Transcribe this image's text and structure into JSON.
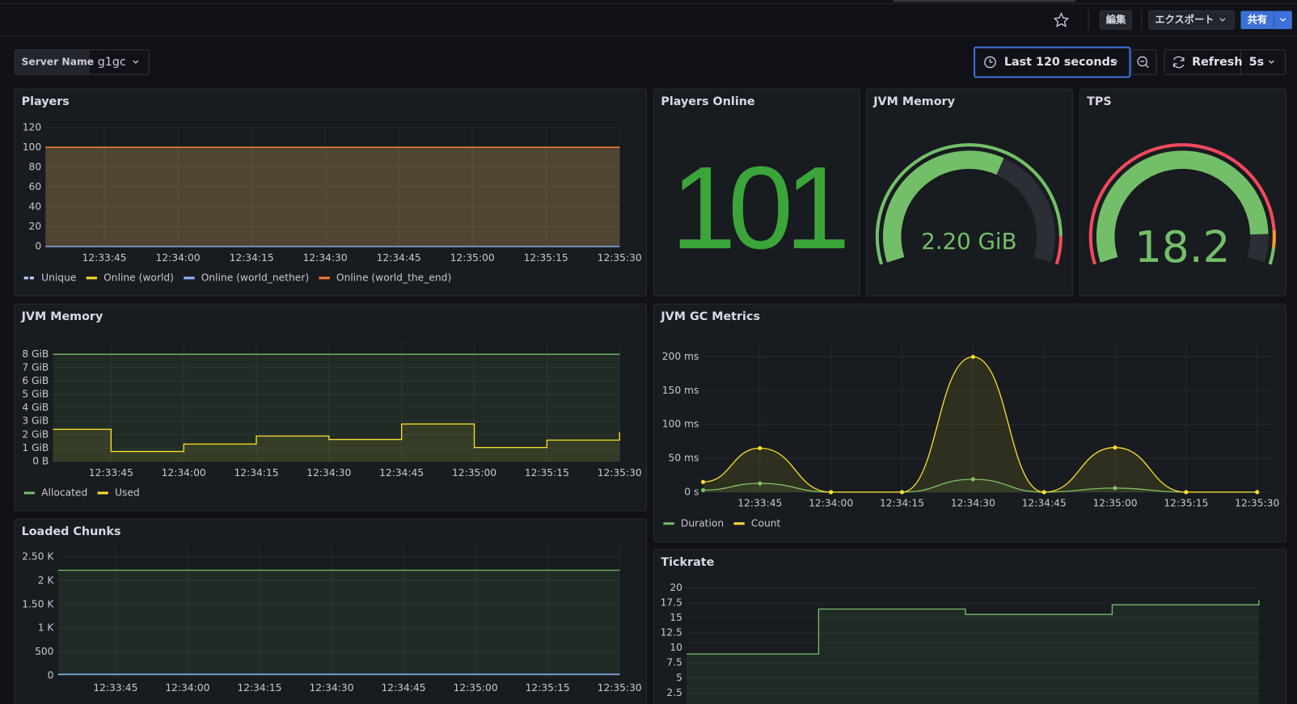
{
  "header": {
    "buttons": [
      "編集",
      "エクスポート",
      "共有"
    ]
  },
  "controls": {
    "variable_label": "Server Name",
    "variable_value": "g1gc",
    "time_range": "Last 120 seconds",
    "refresh": "Refresh",
    "refresh_interval": "5s"
  },
  "chart_data": [
    {
      "type": "line",
      "title": "Players",
      "x": [
        "12:33:33",
        "12:35:30"
      ],
      "xlim": [
        "12:33:33",
        "12:35:30"
      ],
      "xticks": [
        "12:33:45",
        "12:34:00",
        "12:34:15",
        "12:34:30",
        "12:34:45",
        "12:35:00",
        "12:35:15",
        "12:35:30"
      ],
      "ylim": [
        0,
        120
      ],
      "yticks": [
        0,
        20,
        40,
        60,
        80,
        100,
        120
      ],
      "grid": true,
      "series": [
        {
          "name": "Unique",
          "color": "#c0d8ff",
          "dashed": true,
          "values": [
            100,
            100
          ]
        },
        {
          "name": "Online (world)",
          "color": "#fade2a",
          "values": [
            100,
            100
          ]
        },
        {
          "name": "Online (world_nether)",
          "color": "#8ab8ff",
          "values": [
            0,
            0
          ]
        },
        {
          "name": "Online (world_the_end)",
          "color": "#ff7833",
          "values": [
            100,
            100
          ]
        }
      ]
    },
    {
      "type": "stat",
      "title": "Players Online",
      "value": 101,
      "color": "#3ba53a"
    },
    {
      "type": "gauge",
      "title": "JVM Memory",
      "value": 2.2,
      "value_label": "2.20 GiB",
      "min": 0,
      "max": 3.6,
      "color": "#73bf69",
      "thresholds": [
        {
          "value": 0,
          "color": "#73bf69"
        },
        {
          "value": 3.3,
          "color": "#f2495c"
        }
      ]
    },
    {
      "type": "gauge",
      "title": "TPS",
      "value": 18.2,
      "min": 0,
      "max": 20,
      "color": "#73bf69",
      "thresholds": [
        {
          "value": 0,
          "color": "#f2495c"
        },
        {
          "value": 18,
          "color": "#ff9830"
        },
        {
          "value": 19,
          "color": "#73bf69"
        }
      ]
    },
    {
      "type": "line",
      "title": "JVM Memory",
      "step": true,
      "x": [
        "12:33:33",
        "12:33:45",
        "12:34:00",
        "12:34:15",
        "12:34:30",
        "12:34:45",
        "12:35:00",
        "12:35:15",
        "12:35:30"
      ],
      "xlim": [
        "12:33:33",
        "12:35:30"
      ],
      "xticks": [
        "12:33:45",
        "12:34:00",
        "12:34:15",
        "12:34:30",
        "12:34:45",
        "12:35:00",
        "12:35:15",
        "12:35:30"
      ],
      "ylim": [
        0,
        9
      ],
      "yticks": [
        {
          "value": 0,
          "label": "0 B"
        },
        {
          "value": 1,
          "label": "1 GiB"
        },
        {
          "value": 2,
          "label": "2 GiB"
        },
        {
          "value": 3,
          "label": "3 GiB"
        },
        {
          "value": 4,
          "label": "4 GiB"
        },
        {
          "value": 5,
          "label": "5 GiB"
        },
        {
          "value": 6,
          "label": "6 GiB"
        },
        {
          "value": 7,
          "label": "7 GiB"
        },
        {
          "value": 8,
          "label": "8 GiB"
        }
      ],
      "grid": true,
      "series": [
        {
          "name": "Allocated",
          "color": "#73bf69",
          "values": [
            8,
            8,
            8,
            8,
            8,
            8,
            8,
            8,
            8
          ]
        },
        {
          "name": "Used",
          "color": "#fade2a",
          "values": [
            2.4,
            0.75,
            1.3,
            1.9,
            1.65,
            2.8,
            1.05,
            1.6,
            2.2
          ]
        }
      ]
    },
    {
      "type": "line",
      "title": "JVM GC Metrics",
      "smooth": true,
      "points": true,
      "x": [
        "12:33:33",
        "12:33:45",
        "12:34:00",
        "12:34:15",
        "12:34:30",
        "12:34:45",
        "12:35:00",
        "12:35:15",
        "12:35:30"
      ],
      "xlim": [
        "12:33:33",
        "12:35:33"
      ],
      "xticks": [
        "12:33:45",
        "12:34:00",
        "12:34:15",
        "12:34:30",
        "12:34:45",
        "12:35:00",
        "12:35:15",
        "12:35:30"
      ],
      "ylim": [
        0,
        220
      ],
      "yticks": [
        {
          "value": 0,
          "label": "0 s"
        },
        {
          "value": 50,
          "label": "50 ms"
        },
        {
          "value": 100,
          "label": "100 ms"
        },
        {
          "value": 150,
          "label": "150 ms"
        },
        {
          "value": 200,
          "label": "200 ms"
        }
      ],
      "grid": true,
      "series": [
        {
          "name": "Duration",
          "color": "#73bf69",
          "values": [
            3,
            13,
            0,
            0,
            19,
            0,
            6,
            0,
            0
          ]
        },
        {
          "name": "Count",
          "color": "#fade2a",
          "values": [
            15,
            65,
            0,
            0,
            200,
            0,
            66,
            0,
            0
          ]
        }
      ]
    },
    {
      "type": "line",
      "title": "Loaded Chunks",
      "x": [
        "12:33:33",
        "12:35:30"
      ],
      "xlim": [
        "12:33:33",
        "12:35:30"
      ],
      "xticks": [
        "12:33:45",
        "12:34:00",
        "12:34:15",
        "12:34:30",
        "12:34:45",
        "12:35:00",
        "12:35:15",
        "12:35:30"
      ],
      "ylim": [
        0,
        2750
      ],
      "yticks": [
        0,
        500,
        {
          "value": 1000,
          "label": "1 K"
        },
        {
          "value": 1500,
          "label": "1.50 K"
        },
        {
          "value": 2000,
          "label": "2 K"
        },
        {
          "value": 2500,
          "label": "2.50 K"
        }
      ],
      "grid": true,
      "series": [
        {
          "color": "#73bf69",
          "values": [
            2220,
            2220
          ]
        },
        {
          "color": "#8ab8ff",
          "values": [
            30,
            30
          ]
        }
      ]
    },
    {
      "type": "line",
      "title": "Tickrate",
      "step": true,
      "x": [
        "12:33:33",
        "12:34:00",
        "12:34:30",
        "12:35:00",
        "12:35:30"
      ],
      "xlim": [
        "12:33:33",
        "12:35:30"
      ],
      "ylim": [
        0,
        20
      ],
      "yticks": [
        2.5,
        5,
        7.5,
        10,
        12.5,
        15,
        17.5,
        20
      ],
      "grid": true,
      "series": [
        {
          "color": "#73bf69",
          "values": [
            9,
            16.5,
            15.6,
            17.2,
            18
          ]
        }
      ]
    }
  ]
}
